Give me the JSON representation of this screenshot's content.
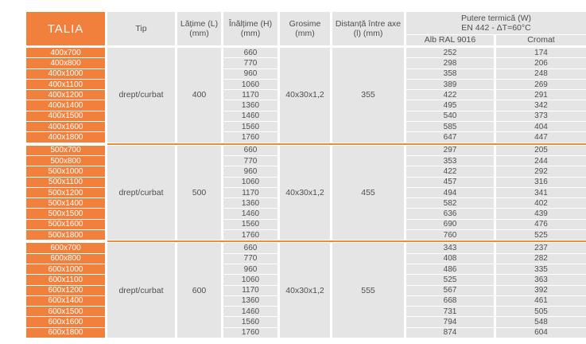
{
  "table": {
    "title": "TALIA",
    "headers": {
      "tip": "Tip",
      "latime": "Lățime (L)\n(mm)",
      "inaltime": "Înălțime (H)\n(mm)",
      "grosime": "Grosime\n(mm)",
      "distanta": "Distanță între axe\n(l) (mm)",
      "putere": "Putere termică (W)\nEN 442 - ΔT=60°C",
      "alb": "Alb RAL 9016",
      "cromat": "Cromat"
    },
    "colors": {
      "accent_orange": "#f0803c",
      "separator_orange": "#e88f3c",
      "cell_gray": "#e5e5e6",
      "text_gray": "#4d4e50"
    },
    "groups": [
      {
        "tip": "drept/curbat",
        "latime": "400",
        "grosime": "40x30x1,2",
        "distanta": "355",
        "rows": [
          {
            "size": "400x700",
            "h": "660",
            "alb": "252",
            "cromat": "174"
          },
          {
            "size": "400x800",
            "h": "770",
            "alb": "298",
            "cromat": "206"
          },
          {
            "size": "400x1000",
            "h": "960",
            "alb": "358",
            "cromat": "248"
          },
          {
            "size": "400x1100",
            "h": "1060",
            "alb": "389",
            "cromat": "269"
          },
          {
            "size": "400x1200",
            "h": "1170",
            "alb": "422",
            "cromat": "291"
          },
          {
            "size": "400x1400",
            "h": "1360",
            "alb": "495",
            "cromat": "342"
          },
          {
            "size": "400x1500",
            "h": "1460",
            "alb": "540",
            "cromat": "373"
          },
          {
            "size": "400x1600",
            "h": "1560",
            "alb": "585",
            "cromat": "404"
          },
          {
            "size": "400x1800",
            "h": "1760",
            "alb": "647",
            "cromat": "447"
          }
        ]
      },
      {
        "tip": "drept/curbat",
        "latime": "500",
        "grosime": "40x30x1,2",
        "distanta": "455",
        "rows": [
          {
            "size": "500x700",
            "h": "660",
            "alb": "297",
            "cromat": "205"
          },
          {
            "size": "500x800",
            "h": "770",
            "alb": "353",
            "cromat": "244"
          },
          {
            "size": "500x1000",
            "h": "960",
            "alb": "422",
            "cromat": "292"
          },
          {
            "size": "500x1100",
            "h": "1060",
            "alb": "457",
            "cromat": "316"
          },
          {
            "size": "500x1200",
            "h": "1170",
            "alb": "494",
            "cromat": "341"
          },
          {
            "size": "500x1400",
            "h": "1360",
            "alb": "582",
            "cromat": "402"
          },
          {
            "size": "500x1500",
            "h": "1460",
            "alb": "636",
            "cromat": "439"
          },
          {
            "size": "500x1600",
            "h": "1560",
            "alb": "690",
            "cromat": "476"
          },
          {
            "size": "500x1800",
            "h": "1760",
            "alb": "760",
            "cromat": "525"
          }
        ]
      },
      {
        "tip": "drept/curbat",
        "latime": "600",
        "grosime": "40x30x1,2",
        "distanta": "555",
        "rows": [
          {
            "size": "600x700",
            "h": "660",
            "alb": "343",
            "cromat": "237"
          },
          {
            "size": "600x800",
            "h": "770",
            "alb": "408",
            "cromat": "282"
          },
          {
            "size": "600x1000",
            "h": "960",
            "alb": "486",
            "cromat": "335"
          },
          {
            "size": "600x1100",
            "h": "1060",
            "alb": "525",
            "cromat": "363"
          },
          {
            "size": "600x1200",
            "h": "1170",
            "alb": "567",
            "cromat": "392"
          },
          {
            "size": "600x1400",
            "h": "1360",
            "alb": "668",
            "cromat": "461"
          },
          {
            "size": "600x1500",
            "h": "1460",
            "alb": "731",
            "cromat": "505"
          },
          {
            "size": "600x1600",
            "h": "1560",
            "alb": "794",
            "cromat": "548"
          },
          {
            "size": "600x1800",
            "h": "1760",
            "alb": "874",
            "cromat": "604"
          }
        ]
      }
    ]
  }
}
